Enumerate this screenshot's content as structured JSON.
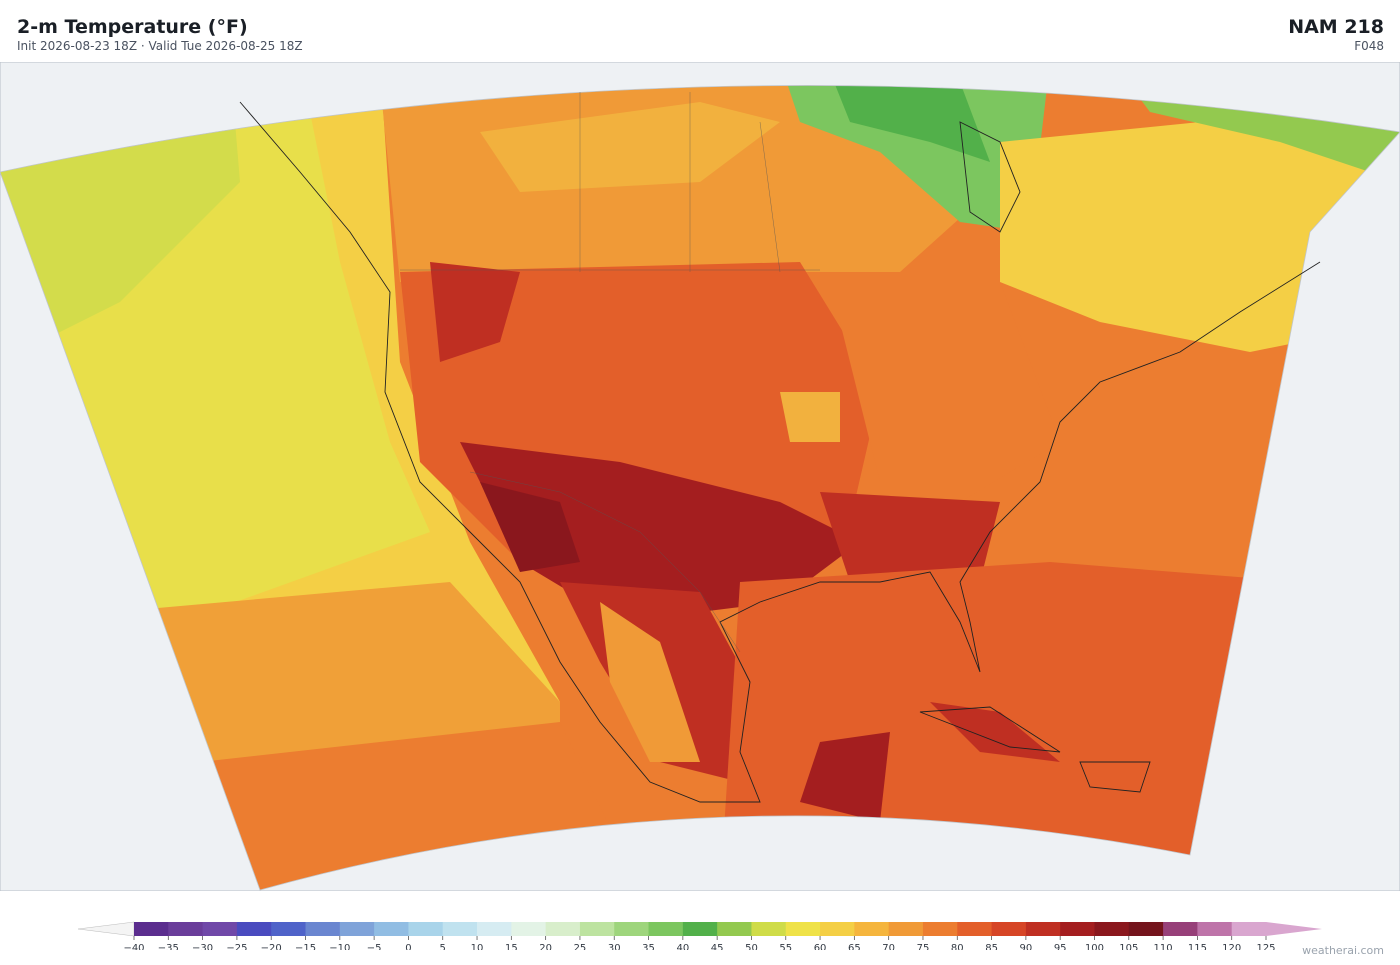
{
  "header": {
    "title": "2-m Temperature  (°F)",
    "subtitle": "Init 2026-08-23 18Z  ·  Valid Tue 2026-08-25 18Z",
    "model": "NAM  218",
    "forecast_hour": "F048"
  },
  "colorbar": {
    "ticks": [
      {
        "value": -40,
        "label": "−40"
      },
      {
        "value": -35,
        "label": "−35"
      },
      {
        "value": -30,
        "label": "−30"
      },
      {
        "value": -25,
        "label": "−25"
      },
      {
        "value": -20,
        "label": "−20"
      },
      {
        "value": -15,
        "label": "−15"
      },
      {
        "value": -10,
        "label": "−10"
      },
      {
        "value": -5,
        "label": "−5"
      },
      0,
      5,
      10,
      15,
      20,
      25,
      30,
      35,
      40,
      45,
      50,
      55,
      60,
      65,
      70,
      75,
      80,
      85,
      90,
      95,
      100,
      105,
      110,
      115,
      120,
      125
    ],
    "colors": [
      "#5b2d8e",
      "#6a3d9a",
      "#7048a8",
      "#4a4bbf",
      "#4f63c9",
      "#6a86d0",
      "#7fa3d9",
      "#91bde3",
      "#a9d4ea",
      "#c0e2ef",
      "#d6ecf2",
      "#e3f3e6",
      "#d8eecb",
      "#bde3a0",
      "#9ed57c",
      "#7cc65f",
      "#52b04a",
      "#93c94f",
      "#cfdc48",
      "#efe248",
      "#f4cf45",
      "#f5b53d",
      "#f09a37",
      "#ec7d30",
      "#e35f2a",
      "#d64526",
      "#bf2f22",
      "#a41e1f",
      "#8a171d",
      "#74141c",
      "#974079",
      "#be74a9",
      "#d9a6cf"
    ],
    "under_color": "#f4f4f4",
    "over_color": "#d9a6cf"
  },
  "watermark": "weatherai.com"
}
